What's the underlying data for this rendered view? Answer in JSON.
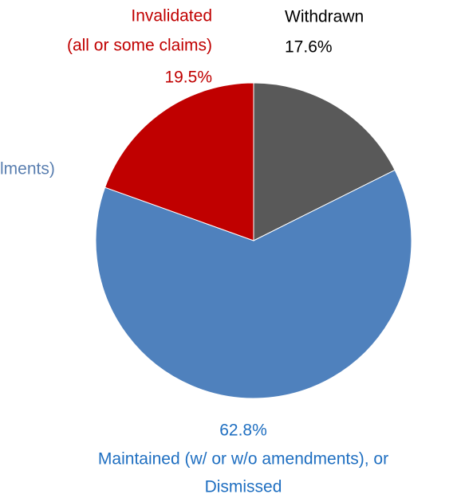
{
  "chart_data": {
    "type": "pie",
    "categories": [
      [
        "Withdrawn"
      ],
      [
        "Maintained (w/ or w/o amendments), or",
        "Dismissed"
      ],
      [
        "Invalidated",
        "(all or some claims)"
      ]
    ],
    "values": [
      17.6,
      62.8,
      19.5
    ],
    "value_labels": [
      "17.6%",
      "62.8%",
      "19.5%"
    ],
    "colors": [
      "#595959",
      "#4f81bd",
      "#c00000"
    ],
    "label_colors": [
      "#000000",
      "#1f6fc1",
      "#c00000"
    ],
    "annotation": "lments)"
  }
}
